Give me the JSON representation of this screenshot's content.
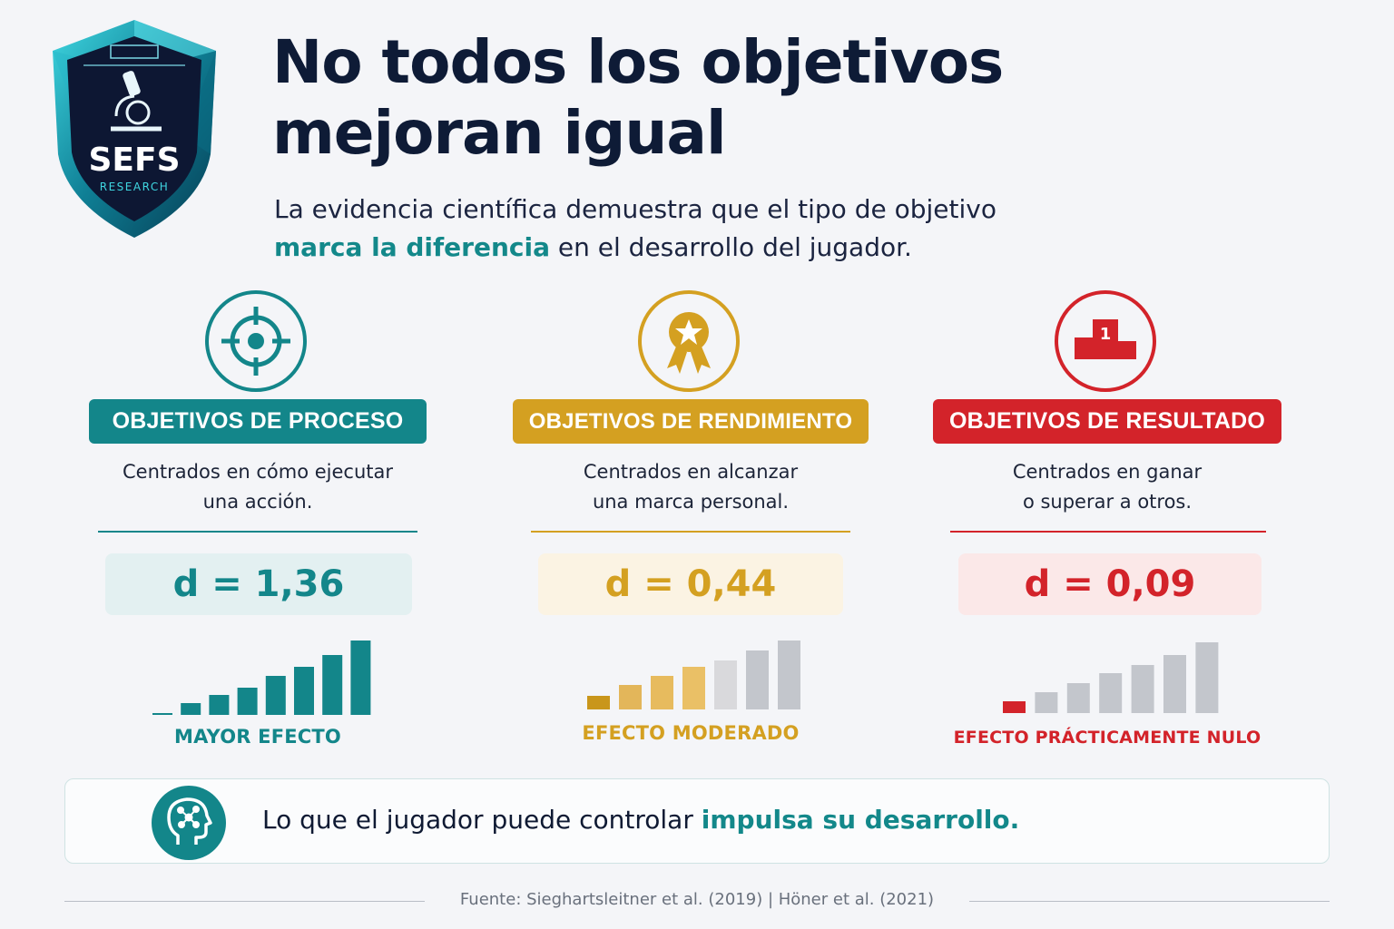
{
  "logo": {
    "name": "SEFS",
    "tagline": "RESEARCH",
    "icon": "microscope-icon"
  },
  "title": "No todos los objetivos mejoran igual",
  "subtitle": {
    "part1": "La evidencia científica demuestra que el tipo de objetivo",
    "highlight": "marca la diferencia",
    "part2": "en el desarrollo del jugador."
  },
  "columns": [
    {
      "icon": "target-crosshair-icon",
      "label": "OBJETIVOS DE PROCESO",
      "desc_line1": "Centrados en cómo ejecutar",
      "desc_line2": "una acción.",
      "effect": "d = 1,36",
      "caption": "MAYOR EFECTO",
      "color": "#13868a",
      "bars": [
        2,
        13,
        22,
        30,
        43,
        53,
        66,
        82
      ],
      "highlighted_bars": 8
    },
    {
      "icon": "medal-star-icon",
      "label": "OBJETIVOS DE RENDIMIENTO",
      "desc_line1": "Centrados en alcanzar",
      "desc_line2": "una marca personal.",
      "effect": "d = 0,44",
      "caption": "EFECTO MODERADO",
      "color": "#d4a021",
      "bars": [
        15,
        27,
        37,
        47,
        54,
        65,
        76
      ],
      "highlighted_bars": 4
    },
    {
      "icon": "podium-first-icon",
      "label": "OBJETIVOS DE RESULTADO",
      "desc_line1": "Centrados en ganar",
      "desc_line2": "o superar a otros.",
      "effect": "d = 0,09",
      "caption": "EFECTO PRÁCTICAMENTE NULO",
      "color": "#d3232a",
      "bars": [
        13,
        23,
        33,
        44,
        53,
        64,
        78
      ],
      "highlighted_bars": 1
    }
  ],
  "callout": {
    "icon": "head-network-icon",
    "text": "Lo que el jugador puede controlar",
    "highlight": "impulsa su desarrollo."
  },
  "source": "Fuente: Sieghartsleitner et al. (2019)  |  Höner et al. (2021)",
  "colors": {
    "teal": "#13868a",
    "gold": "#d4a021",
    "red": "#d3232a",
    "navy": "#0e1b36",
    "neutral_bar": "#c3c6cc"
  }
}
